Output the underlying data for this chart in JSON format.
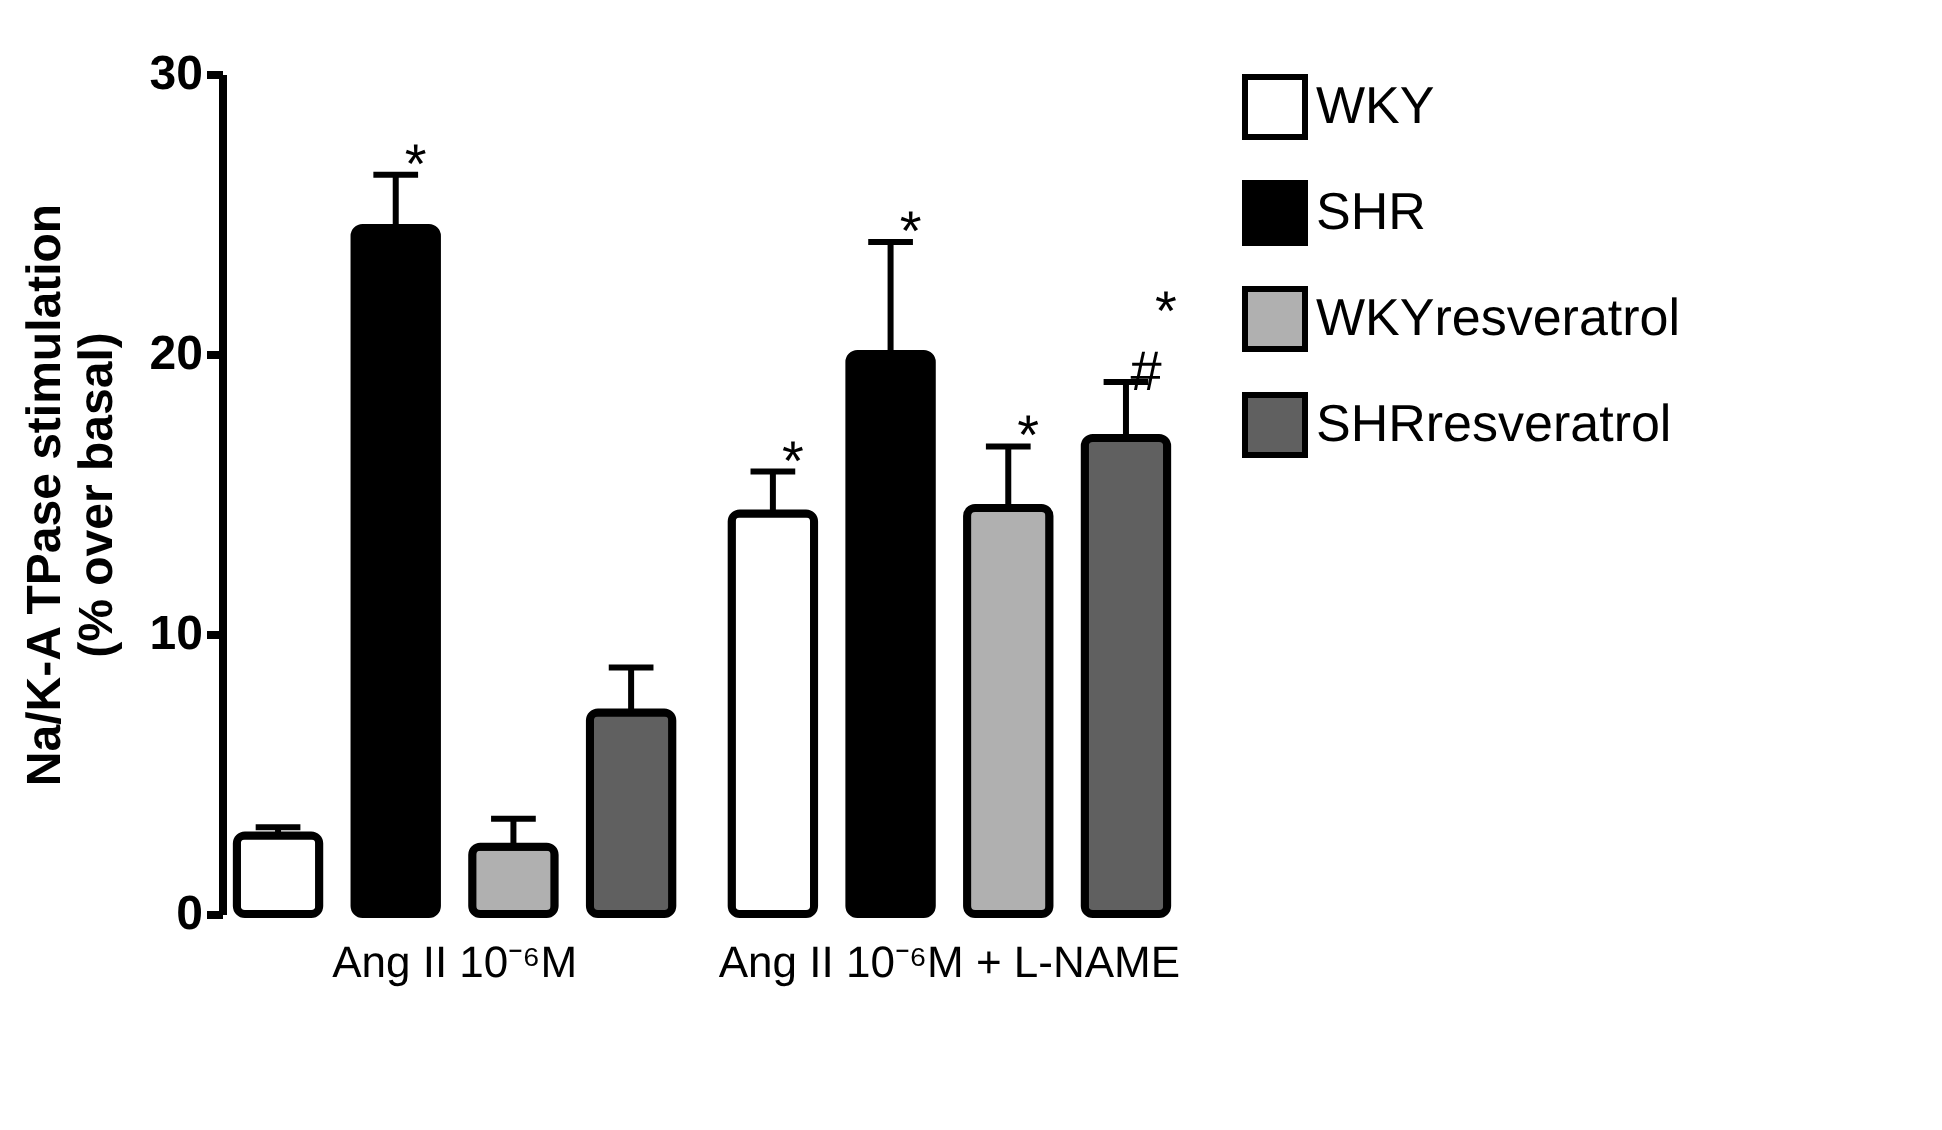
{
  "chart_data": {
    "type": "bar",
    "ylabel": "Na/K-A TPase stimulation\n(% over basal)",
    "categories": [
      "Ang II 10⁻⁶M",
      "Ang II 10⁻⁶M + L-NAME"
    ],
    "series": [
      {
        "name": "WKY",
        "color": "#ffffff",
        "values": [
          2.8,
          14.3
        ],
        "errors": [
          0.3,
          1.5
        ]
      },
      {
        "name": "SHR",
        "color": "#000000",
        "values": [
          24.5,
          20.0
        ],
        "errors": [
          1.9,
          4.0
        ]
      },
      {
        "name": "WKYresveratrol",
        "color": "#b0b0b0",
        "values": [
          2.4,
          14.5
        ],
        "errors": [
          1.0,
          2.2
        ]
      },
      {
        "name": "SHRresveratrol",
        "color": "#606060",
        "values": [
          7.2,
          17.0
        ],
        "errors": [
          1.6,
          2.0
        ]
      }
    ],
    "ylim": [
      0,
      30
    ],
    "yticks": [
      0,
      10,
      20,
      30
    ],
    "grid": false,
    "legend": "top right",
    "annotations": [
      "*",
      "*",
      "*",
      "*",
      "#",
      "*"
    ]
  }
}
